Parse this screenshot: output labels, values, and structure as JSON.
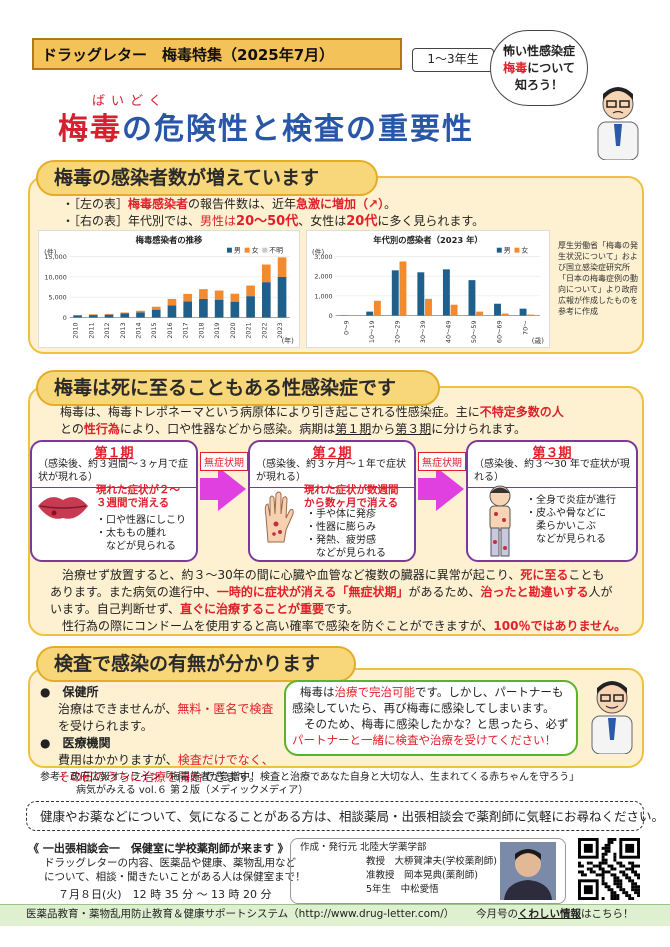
{
  "header": {
    "title": "ドラッグレター　梅毒特集（2025年7月）",
    "grade": "1〜3年生",
    "bubble": {
      "line1": "怖い性感染症",
      "line2_red": "梅毒",
      "line2_rest": "について",
      "line3": "知ろう！"
    },
    "ruby": "ばいどく",
    "title_part1": "梅毒",
    "title_part2": "の危険性と検査の重要性"
  },
  "section1": {
    "heading": "梅毒の感染者数が増えています",
    "b1_pre": "・［左の表］",
    "b1_red": "梅毒感染者",
    "b1_mid": "の報告件数は、近年",
    "b1_red2": "急激に増加（↗）",
    "b1_end": "。",
    "b2_pre": "・［右の表］年代別では、",
    "b2_m": "男性は",
    "b2_m_age": "20〜50代",
    "b2_f": "、女性は",
    "b2_f_age": "20代",
    "b2_end": "に多く見られます。",
    "note": "厚生労働省「梅毒の発生状況について」および国立感染症研究所「日本の梅毒症例の動向について」より政府広報が作成したものを参考に作成"
  },
  "chart_data": [
    {
      "type": "bar",
      "title": "梅毒感染者の推移",
      "ylabel": "(件)",
      "xlabel": "(年)",
      "ylim": [
        0,
        15000
      ],
      "yticks": [
        "15,000",
        "10,000",
        "5,000",
        "0"
      ],
      "categories": [
        "2010",
        "2011",
        "2012",
        "2013",
        "2014",
        "2015",
        "2016",
        "2017",
        "2018",
        "2019",
        "2020",
        "2021",
        "2022",
        "2023"
      ],
      "stacked": true,
      "series": [
        {
          "name": "男",
          "color": "#1f5f8b",
          "values": [
            480,
            600,
            690,
            990,
            1280,
            1930,
            2990,
            3930,
            4590,
            4390,
            3900,
            5260,
            8700,
            10000
          ]
        },
        {
          "name": "女",
          "color": "#f28a30",
          "values": [
            140,
            190,
            200,
            240,
            380,
            720,
            1580,
            1880,
            2390,
            2250,
            1960,
            2600,
            4340,
            4800
          ]
        },
        {
          "name": "不明",
          "color": "#c9c9c9",
          "values": [
            0,
            0,
            0,
            0,
            0,
            0,
            0,
            0,
            0,
            0,
            0,
            0,
            0,
            0
          ]
        }
      ],
      "legend": "top-right"
    },
    {
      "type": "bar",
      "title": "年代別の感染者（2023 年）",
      "ylabel": "(件)",
      "xlabel": "(歳)",
      "ylim": [
        0,
        3000
      ],
      "yticks": [
        "3,000",
        "2,000",
        "1,000",
        "0"
      ],
      "categories": [
        "0〜9",
        "10〜19",
        "20〜29",
        "30〜39",
        "40〜49",
        "50〜59",
        "60〜69",
        "70〜"
      ],
      "series": [
        {
          "name": "男",
          "color": "#1f5f8b",
          "values": [
            10,
            200,
            2300,
            2200,
            2350,
            1800,
            600,
            350
          ]
        },
        {
          "name": "女",
          "color": "#f28a30",
          "values": [
            15,
            750,
            2750,
            850,
            550,
            200,
            100,
            50
          ]
        }
      ],
      "legend": "top-right"
    }
  ],
  "section2": {
    "heading": "梅毒は死に至ることもある性感染症です",
    "intro1_a": "梅毒は、梅毒トレポネーマという病原体により引き起こされる性感染症。主に",
    "intro1_red": "不特定多数の人",
    "intro2_a": "との",
    "intro2_red": "性行為",
    "intro2_b": "により、口や性器などから感染。病期は",
    "intro2_p1": "第１期",
    "intro2_c": "から",
    "intro2_p3": "第３期",
    "intro2_d": "に分けられます。",
    "latent": "無症状期",
    "stages": [
      {
        "title": "第１期",
        "sub": "（感染後、約３週間〜３ヶ月で症状が現れる）",
        "red1": "現れた症状が２〜",
        "red2": "３週間で消える",
        "items": [
          "・口や性器にしこり",
          "・太ももの腫れ",
          "　などが見られる"
        ]
      },
      {
        "title": "第２期",
        "sub": "（感染後、約３ヶ月〜１年で症状が現れる）",
        "red1": "現れた症状が数週間",
        "red2": "から数ヶ月で消える",
        "items": [
          "・手や体に発疹",
          "・性器に膨らみ",
          "・発熱、疲労感",
          "　などが見られる"
        ]
      },
      {
        "title": "第３期",
        "sub": "（感染後、約３〜30 年で症状が現れる）",
        "red1": "",
        "red2": "",
        "items": [
          "・全身で炎症が進行",
          "・皮ふや骨などに",
          "　柔らかいこぶ",
          "　などが見られる"
        ]
      }
    ],
    "p1_a": "治療せず放置すると、約３〜30年の間に心臓や血管など複数の臓器に異常が起こり、",
    "p1_red": "死に至る",
    "p1_b": "ことも",
    "p2_a": "あります。また病気の進行中、",
    "p2_red": "一時的に症状が消える「無症状期」",
    "p2_b": "があるため、",
    "p2_red2": "治ったと勘違いする",
    "p2_c": "人が",
    "p3_a": "います。自己判断せず、",
    "p3_red": "直ぐに治療することが重要",
    "p3_b": "です。",
    "p4_a": "性行為の際にコンドームを使用すると高い確率で感染を防ぐことができますが、",
    "p4_red": "100％ではありません。"
  },
  "section3": {
    "heading": "検査で感染の有無が分かります",
    "item1_title": "保健所",
    "item1_a": "治療はできませんが、",
    "item1_red": "無料・匿名で検査",
    "item1_b": "を受けられます。",
    "item2_title": "医療機関",
    "item2_a": "費用はかかりますが、",
    "item2_red": "検査だけでなく、",
    "item2_red2": "その日のうちに治療を開始",
    "item2_b": "できます。",
    "bubble_1a": "梅毒は",
    "bubble_1red": "治療で完治可能",
    "bubble_1b": "です。しかし、パートナーも",
    "bubble_2": "感染していたら、再び梅毒に感染してしまいます。",
    "bubble_3": "そのため、梅毒に感染したかな？と思ったら、必ず",
    "bubble_4red": "パートナーと一緒に検査や治療を受けてください！"
  },
  "references": {
    "line1": "参考：政府広報オンライン「梅毒患者が急増中！検査と治療であなた自身と大切な人、生まれてくる赤ちゃんを守ろう」",
    "line2": "病気がみえる vol.６ 第２版（メディックメディア）"
  },
  "consult": "健康やお薬などについて、気になることがある方は、相談薬局・出張相談会で薬剤師に気軽にお尋ねください。",
  "event": {
    "title": "《 一出張相談会一　保健室に学校薬剤師が来ます 》",
    "line1": "ドラッグレターの内容、医薬品や健康、薬物乱用など",
    "line2": "について、相談・聞きたいことがある人は保健室まで！",
    "date": "７月８日(火)　12 時 35 分 〜 13 時 20 分"
  },
  "publisher": {
    "label": "作成・発行元",
    "org": "北陸大学薬学部",
    "p1_role": "教授",
    "p1_name": "大桺賀津夫(学校薬剤師)",
    "p2_role": "准教授",
    "p2_name": "岡本晃典(薬剤師)",
    "p3_role": "5年生",
    "p3_name": "中松愛悟"
  },
  "footer": {
    "left": "医薬品教育・薬物乱用防止教育＆健康サポートシステム（http://www.drug-letter.com/）",
    "right_a": "今月号の",
    "right_b": "くわしい情報",
    "right_c": "はこちら！"
  }
}
